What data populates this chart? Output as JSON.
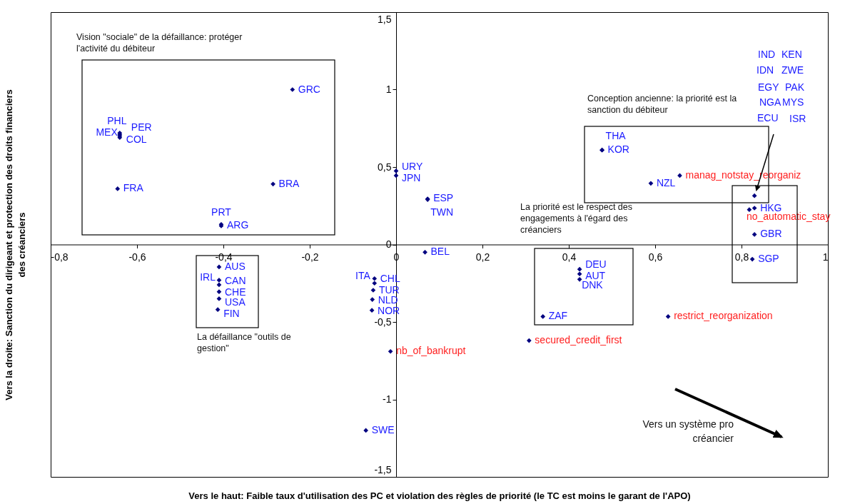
{
  "chart_data": {
    "type": "scatter",
    "marker": "diamond",
    "xlabel": "Vers le haut: Faible taux d'utilisation des PC et violation des règles de priorité (le TC est moins le garant de l'APO)",
    "ylabel": "Vers la droite: Sanction du dirigeant et protection des droits financiers des créanciers",
    "xlim": [
      -0.8,
      1
    ],
    "ylim": [
      -1.5,
      1.5
    ],
    "xticks": [
      {
        "value": -0.8,
        "label": "-0,8"
      },
      {
        "value": -0.6,
        "label": "-0,6"
      },
      {
        "value": -0.4,
        "label": "-0,4"
      },
      {
        "value": -0.2,
        "label": "-0,2"
      },
      0,
      {
        "value": 0.2,
        "label": "0,2"
      },
      {
        "value": 0.4,
        "label": "0,4"
      },
      {
        "value": 0.6,
        "label": "0,6"
      },
      {
        "value": 0.8,
        "label": "0,8"
      },
      1
    ],
    "yticks": [
      {
        "value": -1.5,
        "label": "-1,5"
      },
      -1,
      {
        "value": -0.5,
        "label": "-0,5"
      },
      0,
      {
        "value": 0.5,
        "label": "0,5"
      },
      1,
      {
        "value": 1.5,
        "label": "1,5"
      }
    ],
    "annotations": [
      "Vision \"sociale\" de la défaillance: protéger l'activité du débiteur",
      "Conception ancienne: la priorité est la sanction du débiteur",
      "La priorité est le respect des engagements à l'égard des créanciers",
      "La défaillance \"outils de gestion\"",
      "Vers un système pro créancier",
      "IND",
      "KEN",
      "IDN",
      "ZWE",
      "EGY",
      "PAK",
      "NGA",
      "MYS",
      "ECU",
      "ISR"
    ],
    "series": [
      {
        "color": "#000080",
        "x": [
          -0.24,
          -0.64,
          -0.64,
          -0.64,
          -0.64,
          -0.645,
          -0.285,
          -0.405,
          -0.405,
          0,
          0,
          0.073,
          0.073,
          0.067,
          -0.05,
          -0.05,
          -0.053,
          -0.055,
          -0.056,
          -0.07,
          -0.41,
          -0.41,
          -0.41,
          -0.41,
          -0.41,
          -0.413,
          0.477,
          0.477,
          0.59,
          0.83,
          0.83,
          0.825,
          0.425,
          0.425,
          0.425,
          0.34
        ],
        "values": [
          1.0,
          0.72,
          0.71,
          0.7,
          0.69,
          0.36,
          0.39,
          0.13,
          0.12,
          0.475,
          0.445,
          0.295,
          0.29,
          -0.05,
          -0.22,
          -0.25,
          -0.295,
          -0.355,
          -0.425,
          -1.2,
          -0.145,
          -0.23,
          -0.26,
          -0.305,
          -0.35,
          -0.42,
          0.61,
          0.61,
          0.395,
          0.235,
          0.065,
          -0.095,
          -0.16,
          -0.19,
          -0.225,
          -0.465
        ],
        "value_labels": [
          "GRC",
          "PHL",
          "MEX",
          "PER",
          "COL",
          "FRA",
          "BRA",
          "PRT",
          "ARG",
          "URY",
          "JPN",
          "ESP",
          "TWN",
          "BEL",
          "ITA",
          "CHL",
          "TUR",
          "NLD",
          "NOR",
          "SWE",
          "AUS",
          "IRL",
          "CAN",
          "CHE",
          "USA",
          "FIN",
          "THA",
          "KOR",
          "NZL",
          "HKG",
          "GBR",
          "SGP",
          "DEU",
          "AUT",
          "DNK",
          "ZAF"
        ]
      },
      {
        "color": "#000080",
        "x": [
          0.657,
          0.818,
          0.63,
          0.308,
          -0.013
        ],
        "values": [
          0.445,
          0.225,
          -0.465,
          -0.62,
          -0.69
        ],
        "value_labels": [
          "manag_notstay_reorganiz",
          "no_automatic_stay",
          "restrict_reorganization",
          "secured_credit_first",
          "nb_of_bankrupt"
        ]
      },
      {
        "color": "#000080",
        "x": [
          0.83
        ],
        "values": [
          0.315
        ]
      }
    ]
  }
}
